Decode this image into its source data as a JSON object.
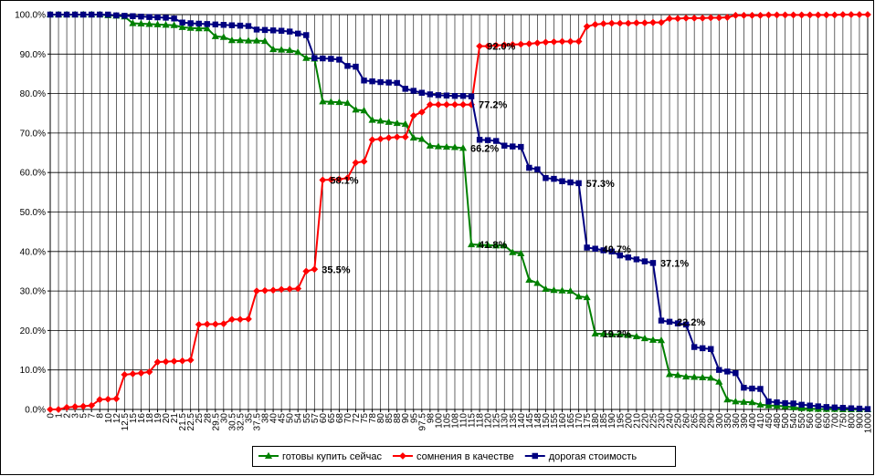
{
  "chart_data": {
    "type": "line",
    "categories": [
      "0",
      "1",
      "2",
      "3",
      "5",
      "7",
      "8",
      "10",
      "12",
      "12.5",
      "15",
      "16",
      "18",
      "19",
      "20",
      "21",
      "21.5",
      "22.5",
      "25",
      "28",
      "29.5",
      "30",
      "30.5",
      "32.5",
      "35",
      "37.5",
      "38",
      "40",
      "45",
      "50",
      "54",
      "55",
      "57",
      "60",
      "65",
      "68",
      "70",
      "72",
      "75",
      "78",
      "80",
      "85",
      "88",
      "90",
      "95",
      "97.5",
      "98",
      "100",
      "105",
      "108",
      "110",
      "115",
      "118",
      "120",
      "125",
      "130",
      "135",
      "140",
      "145",
      "148",
      "150",
      "155",
      "160",
      "165",
      "170",
      "175",
      "180",
      "185",
      "190",
      "195",
      "200",
      "210",
      "220",
      "225",
      "230",
      "240",
      "250",
      "260",
      "265",
      "280",
      "290",
      "300",
      "350",
      "360",
      "390",
      "400",
      "410",
      "450",
      "480",
      "500",
      "540",
      "550",
      "560",
      "600",
      "650",
      "700",
      "750",
      "800",
      "900",
      "1000"
    ],
    "series": [
      {
        "name": "готовы купить сейчас",
        "color": "#008000",
        "marker": "triangle",
        "values": [
          100,
          100,
          100,
          100,
          100,
          100,
          100,
          99.8,
          99.7,
          99.5,
          97.8,
          97.7,
          97.6,
          97.5,
          97.4,
          97.3,
          96.8,
          96.6,
          96.5,
          96.5,
          94.5,
          94.3,
          93.5,
          93.5,
          93.4,
          93.4,
          93.3,
          91.2,
          91.1,
          91.0,
          90.5,
          89.0,
          88.8,
          78.0,
          77.9,
          77.8,
          77.6,
          75.9,
          75.7,
          73.3,
          73.1,
          72.8,
          72.5,
          72.3,
          68.8,
          68.5,
          66.8,
          66.6,
          66.5,
          66.4,
          66.2,
          41.8,
          41.7,
          41.6,
          41.5,
          41.5,
          39.8,
          39.5,
          32.8,
          32.0,
          30.5,
          30.2,
          30.1,
          30.0,
          28.6,
          28.4,
          19.2,
          19.1,
          19.0,
          19.0,
          18.8,
          18.5,
          18.0,
          17.6,
          17.5,
          8.9,
          8.7,
          8.3,
          8.2,
          8.1,
          8.0,
          7.0,
          2.5,
          2.0,
          1.9,
          1.8,
          1.2,
          1.0,
          0.9,
          0.8,
          0.5,
          0.3,
          0.2,
          0.1,
          0.1,
          0.1,
          0,
          0,
          0,
          0
        ],
        "value_labels": [
          null,
          null,
          null,
          null,
          null,
          null,
          null,
          null,
          null,
          null,
          null,
          null,
          null,
          null,
          null,
          null,
          null,
          null,
          null,
          null,
          null,
          null,
          null,
          null,
          null,
          null,
          null,
          null,
          null,
          null,
          null,
          null,
          null,
          null,
          null,
          null,
          null,
          null,
          null,
          null,
          null,
          null,
          null,
          null,
          null,
          null,
          null,
          null,
          null,
          null,
          "66.2%",
          "41.8%",
          null,
          null,
          null,
          null,
          null,
          null,
          null,
          null,
          null,
          null,
          null,
          null,
          null,
          null,
          "19.2%",
          null,
          null,
          null,
          null,
          null,
          null,
          null,
          null,
          null,
          null,
          null,
          null,
          null,
          null,
          null,
          null,
          null,
          null,
          null,
          null,
          null,
          null,
          null,
          null,
          null,
          null,
          null,
          null,
          null,
          null,
          null,
          null,
          null
        ]
      },
      {
        "name": "сомнения в качестве",
        "color": "#ff0000",
        "marker": "diamond",
        "values": [
          0,
          0,
          0.5,
          0.7,
          0.8,
          1.0,
          2.5,
          2.6,
          2.7,
          8.8,
          9.0,
          9.2,
          9.5,
          12.0,
          12.1,
          12.2,
          12.3,
          12.5,
          21.5,
          21.6,
          21.6,
          21.7,
          22.8,
          22.8,
          22.9,
          30.0,
          30.1,
          30.2,
          30.4,
          30.5,
          30.6,
          35.0,
          35.5,
          58.1,
          58.2,
          58.3,
          58.6,
          62.5,
          62.8,
          68.3,
          68.5,
          68.8,
          69.0,
          69.0,
          74.4,
          75.3,
          77.2,
          77.2,
          77.2,
          77.2,
          77.2,
          77.2,
          92.0,
          92.0,
          92.2,
          92.3,
          92.4,
          92.5,
          92.6,
          92.8,
          93.0,
          93.1,
          93.2,
          93.2,
          93.2,
          97.0,
          97.5,
          97.7,
          97.8,
          97.8,
          97.8,
          97.9,
          97.9,
          98.0,
          98.0,
          99.0,
          99.0,
          99.1,
          99.1,
          99.1,
          99.2,
          99.2,
          99.3,
          99.8,
          99.8,
          99.8,
          99.8,
          99.9,
          99.9,
          99.9,
          99.9,
          99.9,
          99.9,
          99.9,
          99.9,
          99.9,
          100,
          100,
          100,
          100
        ],
        "value_labels": [
          null,
          null,
          null,
          null,
          null,
          null,
          null,
          null,
          null,
          null,
          null,
          null,
          null,
          null,
          null,
          null,
          null,
          null,
          null,
          null,
          null,
          null,
          null,
          null,
          null,
          null,
          null,
          null,
          null,
          null,
          null,
          null,
          "35.5%",
          "58.1%",
          null,
          null,
          null,
          null,
          null,
          null,
          null,
          null,
          null,
          null,
          null,
          null,
          null,
          null,
          null,
          null,
          null,
          "77.2%",
          "92.0%",
          null,
          null,
          null,
          null,
          null,
          null,
          null,
          null,
          null,
          null,
          null,
          null,
          null,
          null,
          null,
          null,
          null,
          null,
          null,
          null,
          null,
          null,
          null,
          null,
          null,
          null,
          null,
          null,
          null,
          null,
          null,
          null,
          null,
          null,
          null,
          null,
          null,
          null,
          null,
          null,
          null,
          null,
          null,
          null,
          null,
          null,
          null
        ]
      },
      {
        "name": "дорогая стоимость",
        "color": "#000080",
        "marker": "square",
        "values": [
          100,
          100,
          100,
          100,
          100,
          100,
          100,
          100,
          99.8,
          99.7,
          99.6,
          99.5,
          99.4,
          99.3,
          99.2,
          99.0,
          98.0,
          97.8,
          97.7,
          97.6,
          97.5,
          97.4,
          97.3,
          97.2,
          97.1,
          96.2,
          96.1,
          96.0,
          95.9,
          95.7,
          95.2,
          94.8,
          89.0,
          88.9,
          88.8,
          88.6,
          87.0,
          86.8,
          83.3,
          83.1,
          82.9,
          82.8,
          82.7,
          81.2,
          80.7,
          80.2,
          79.8,
          79.6,
          79.5,
          79.4,
          79.4,
          79.3,
          68.3,
          68.2,
          68.0,
          66.8,
          66.6,
          66.5,
          61.2,
          60.8,
          58.6,
          58.4,
          57.8,
          57.5,
          57.3,
          41.0,
          40.7,
          40.3,
          40.0,
          39.0,
          38.5,
          38.0,
          37.5,
          37.1,
          22.5,
          22.2,
          21.8,
          21.5,
          15.8,
          15.5,
          15.3,
          10.0,
          9.6,
          9.2,
          5.5,
          5.3,
          5.2,
          2.0,
          1.8,
          1.6,
          1.5,
          1.2,
          1.0,
          0.8,
          0.6,
          0.5,
          0.4,
          0.3,
          0.2,
          0.1
        ],
        "value_labels": [
          null,
          null,
          null,
          null,
          null,
          null,
          null,
          null,
          null,
          null,
          null,
          null,
          null,
          null,
          null,
          null,
          null,
          null,
          null,
          null,
          null,
          null,
          null,
          null,
          null,
          null,
          null,
          null,
          null,
          null,
          null,
          null,
          null,
          null,
          null,
          null,
          null,
          null,
          null,
          null,
          null,
          null,
          null,
          null,
          null,
          null,
          null,
          null,
          null,
          null,
          null,
          null,
          null,
          null,
          null,
          null,
          null,
          null,
          null,
          null,
          null,
          null,
          null,
          null,
          "57.3%",
          null,
          "40.7%",
          null,
          null,
          null,
          null,
          null,
          null,
          "37.1%",
          null,
          "22.2%",
          null,
          null,
          null,
          null,
          null,
          null,
          null,
          null,
          null,
          null,
          null,
          null,
          null,
          null,
          null,
          null,
          null,
          null,
          null,
          null,
          null,
          null,
          null,
          null
        ]
      }
    ],
    "ylim": [
      0,
      100
    ],
    "yticks": [
      {
        "value": 0,
        "label": "0.0%"
      },
      {
        "value": 10,
        "label": "10.0%"
      },
      {
        "value": 20,
        "label": "20.0%"
      },
      {
        "value": 30,
        "label": "30.0%"
      },
      {
        "value": 40,
        "label": "40.0%"
      },
      {
        "value": 50,
        "label": "50.0%"
      },
      {
        "value": 60,
        "label": "60.0%"
      },
      {
        "value": 70,
        "label": "70.0%"
      },
      {
        "value": 80,
        "label": "80.0%"
      },
      {
        "value": 90,
        "label": "90.0%"
      },
      {
        "value": 100,
        "label": "100.0%"
      }
    ],
    "grid": true,
    "legend": "bottom"
  }
}
